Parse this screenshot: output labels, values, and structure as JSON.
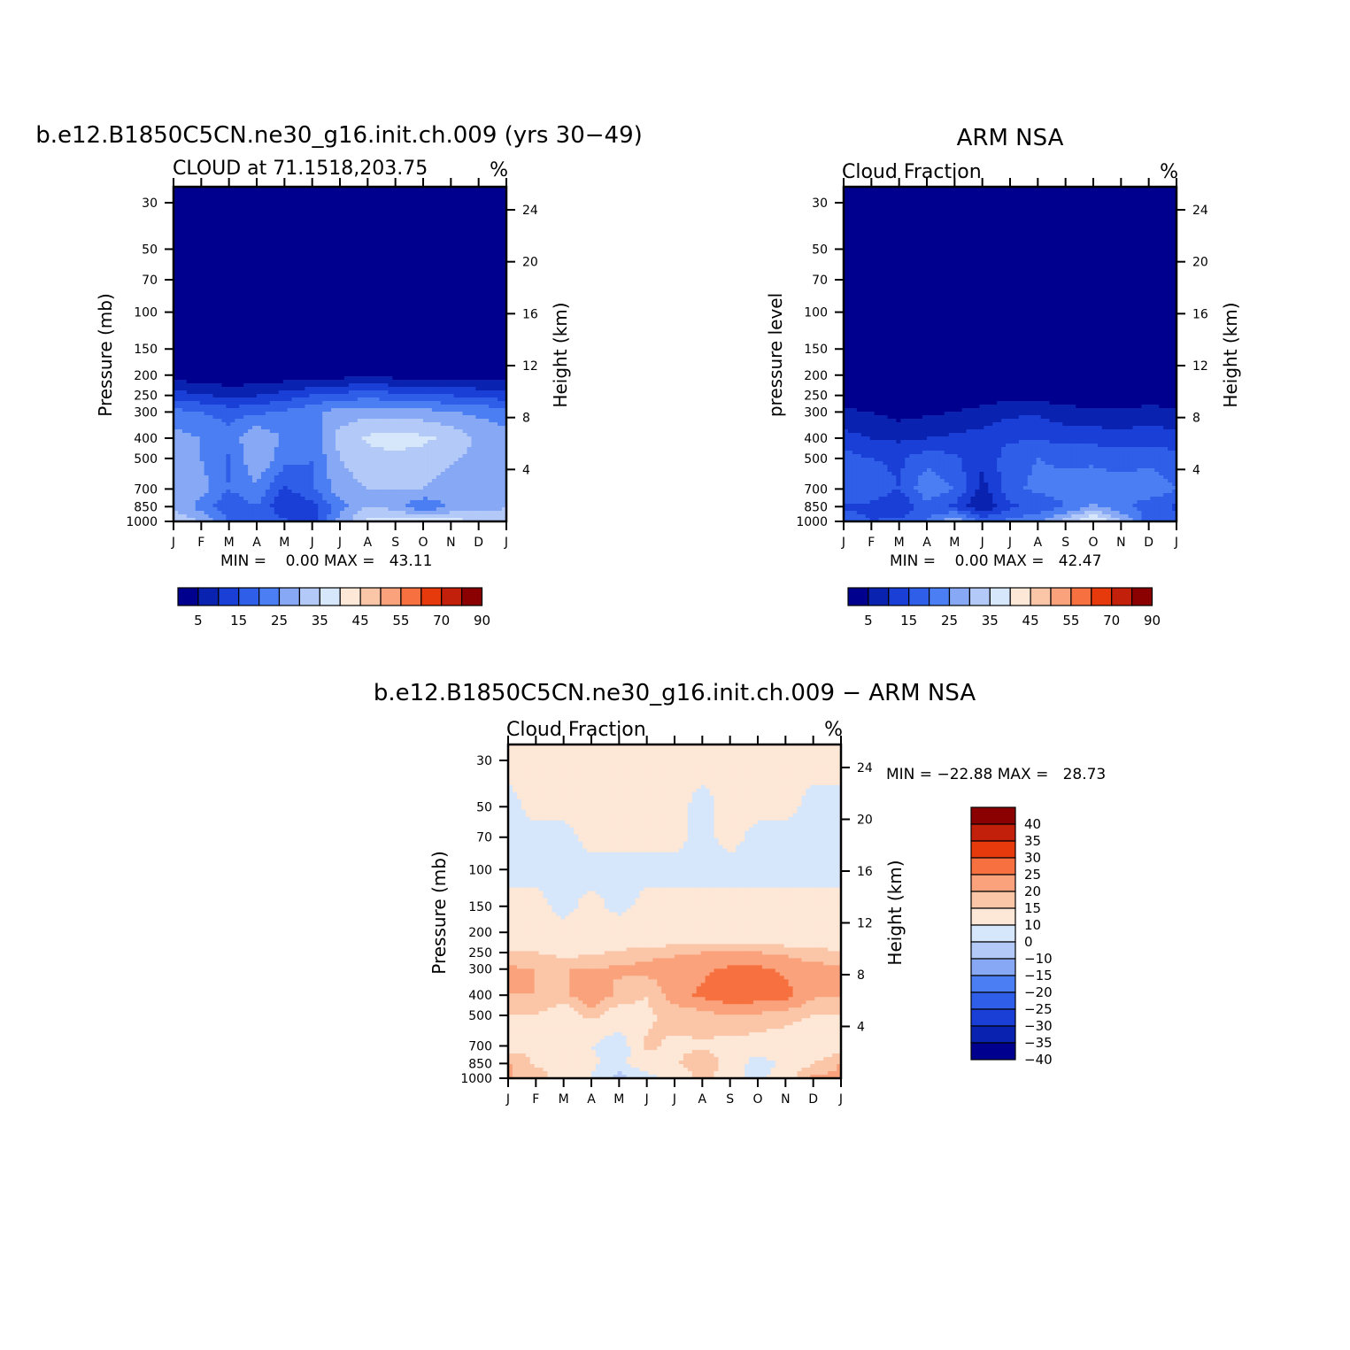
{
  "colors": {
    "cloud_levels": [
      "#00008f",
      "#0a22b0",
      "#1a3fd6",
      "#2f5ee8",
      "#4a7ef2",
      "#87a9f5",
      "#b3c9f8",
      "#d6e6fb",
      "#fde7d6",
      "#fbc6a8",
      "#f9a27c",
      "#f77140",
      "#e63a0c",
      "#c2200a",
      "#8b0000"
    ],
    "diff_levels": [
      "#00008f",
      "#0a22b0",
      "#1a3fd6",
      "#2f5ee8",
      "#4a7ef2",
      "#87a9f5",
      "#b3c9f8",
      "#d6e6fb",
      "#fde7d6",
      "#fbc6a8",
      "#f9a27c",
      "#f77140",
      "#e63a0c",
      "#c2200a",
      "#8b0000"
    ]
  },
  "chart_data": [
    {
      "type": "heatmap",
      "title": "b.e12.B1850C5CN.ne30_g16.init.ch.009 (yrs 30−49)",
      "subtitle": "CLOUD at 71.1518,203.75",
      "units": "%",
      "ylabel": "Pressure (mb)",
      "ylabel_right": "Height (km)",
      "x_ticks": [
        "J",
        "F",
        "M",
        "A",
        "M",
        "J",
        "J",
        "A",
        "S",
        "O",
        "N",
        "D",
        "J"
      ],
      "y_ticks": [
        "30",
        "50",
        "70",
        "100",
        "150",
        "200",
        "250",
        "300",
        "400",
        "500",
        "700",
        "850",
        "1000"
      ],
      "y_ticks_right": [
        "24",
        "20",
        "16",
        "12",
        "8",
        "4"
      ],
      "ylim": [
        30,
        1000
      ],
      "stats": "MIN =    0.00 MAX =   43.11",
      "min": 0.0,
      "max": 43.11,
      "colorbar_labels": [
        "5",
        "15",
        "25",
        "35",
        "45",
        "55",
        "70",
        "90"
      ],
      "months": [
        "J",
        "F",
        "M",
        "A",
        "M",
        "J",
        "J",
        "A",
        "S",
        "O",
        "N",
        "D",
        "J"
      ],
      "levels_mb": [
        30,
        50,
        70,
        100,
        150,
        200,
        250,
        300,
        400,
        500,
        700,
        850,
        1000
      ],
      "values": [
        [
          0,
          0,
          0,
          0,
          0,
          0,
          0,
          0,
          0,
          0,
          0,
          0,
          0
        ],
        [
          0,
          0,
          0,
          0,
          0,
          0,
          0,
          0,
          0,
          0,
          0,
          0,
          0
        ],
        [
          0,
          0,
          0,
          0,
          0,
          0,
          0,
          0,
          0,
          0,
          0,
          0,
          0
        ],
        [
          0,
          0,
          0,
          0,
          0,
          0,
          0,
          0,
          0,
          0,
          0,
          0,
          0
        ],
        [
          0,
          0,
          0,
          0,
          0,
          0,
          0,
          0,
          0,
          0,
          0,
          0,
          0
        ],
        [
          2,
          2,
          1,
          1,
          2,
          2,
          3,
          3,
          3,
          3,
          2,
          2,
          2
        ],
        [
          12,
          11,
          8,
          10,
          12,
          15,
          17,
          18,
          17,
          16,
          15,
          14,
          12
        ],
        [
          22,
          20,
          18,
          19,
          21,
          24,
          27,
          28,
          28,
          27,
          25,
          24,
          22
        ],
        [
          27,
          25,
          22,
          30,
          24,
          22,
          32,
          36,
          37,
          36,
          34,
          29,
          27
        ],
        [
          27,
          25,
          19,
          30,
          22,
          20,
          30,
          33,
          34,
          33,
          31,
          28,
          27
        ],
        [
          27,
          27,
          20,
          24,
          14,
          19,
          28,
          30,
          30,
          30,
          27,
          27,
          27
        ],
        [
          30,
          23,
          16,
          20,
          10,
          13,
          23,
          30,
          28,
          20,
          26,
          27,
          30
        ],
        [
          33,
          30,
          20,
          20,
          16,
          12,
          27,
          36,
          38,
          38,
          37,
          35,
          33
        ]
      ]
    },
    {
      "type": "heatmap",
      "title": "ARM NSA",
      "subtitle": "Cloud Fraction",
      "units": "%",
      "ylabel": "pressure level",
      "ylabel_right": "Height (km)",
      "x_ticks": [
        "J",
        "F",
        "M",
        "A",
        "M",
        "J",
        "J",
        "A",
        "S",
        "O",
        "N",
        "D",
        "J"
      ],
      "y_ticks": [
        "30",
        "50",
        "70",
        "100",
        "150",
        "200",
        "250",
        "300",
        "400",
        "500",
        "700",
        "850",
        "1000"
      ],
      "y_ticks_right": [
        "24",
        "20",
        "16",
        "12",
        "8",
        "4"
      ],
      "ylim": [
        30,
        1000
      ],
      "stats": "MIN =    0.00 MAX =   42.47",
      "min": 0.0,
      "max": 42.47,
      "colorbar_labels": [
        "5",
        "15",
        "25",
        "35",
        "45",
        "55",
        "70",
        "90"
      ],
      "months": [
        "J",
        "F",
        "M",
        "A",
        "M",
        "J",
        "J",
        "A",
        "S",
        "O",
        "N",
        "D",
        "J"
      ],
      "levels_mb": [
        30,
        50,
        70,
        100,
        150,
        200,
        250,
        300,
        400,
        500,
        700,
        850,
        1000
      ],
      "values": [
        [
          0,
          0,
          0,
          0,
          0,
          0,
          0,
          0,
          0,
          0,
          0,
          0,
          0
        ],
        [
          0,
          0,
          0,
          0,
          0,
          0,
          0,
          0,
          0,
          0,
          0,
          0,
          0
        ],
        [
          0,
          0,
          0,
          0,
          0,
          0,
          0,
          0,
          0,
          0,
          0,
          0,
          0
        ],
        [
          0,
          0,
          0,
          0,
          0,
          0,
          0,
          0,
          0,
          0,
          0,
          0,
          0
        ],
        [
          0,
          0,
          0,
          0,
          0,
          0,
          0,
          0,
          0,
          0,
          0,
          0,
          0
        ],
        [
          0,
          0,
          0,
          0,
          0,
          0,
          0,
          0,
          0,
          0,
          0,
          0,
          0
        ],
        [
          1,
          1,
          0,
          1,
          1,
          2,
          3,
          3,
          2,
          1,
          1,
          2,
          1
        ],
        [
          6,
          5,
          3,
          4,
          5,
          7,
          9,
          9,
          7,
          6,
          6,
          7,
          6
        ],
        [
          12,
          10,
          9,
          10,
          11,
          12,
          14,
          15,
          13,
          13,
          12,
          13,
          12
        ],
        [
          17,
          15,
          14,
          18,
          16,
          11,
          18,
          20,
          19,
          19,
          18,
          18,
          17
        ],
        [
          20,
          18,
          15,
          24,
          20,
          8,
          19,
          21,
          22,
          23,
          22,
          24,
          20
        ],
        [
          14,
          14,
          10,
          18,
          14,
          5,
          14,
          16,
          20,
          26,
          22,
          17,
          14
        ],
        [
          18,
          15,
          16,
          20,
          30,
          18,
          22,
          24,
          32,
          42,
          30,
          18,
          18
        ]
      ]
    },
    {
      "type": "heatmap",
      "title": "b.e12.B1850C5CN.ne30_g16.init.ch.009 − ARM NSA",
      "subtitle": "Cloud Fraction",
      "units": "%",
      "ylabel": "Pressure (mb)",
      "ylabel_right": "Height (km)",
      "x_ticks": [
        "J",
        "F",
        "M",
        "A",
        "M",
        "J",
        "J",
        "A",
        "S",
        "O",
        "N",
        "D",
        "J"
      ],
      "y_ticks": [
        "30",
        "50",
        "70",
        "100",
        "150",
        "200",
        "250",
        "300",
        "400",
        "500",
        "700",
        "850",
        "1000"
      ],
      "y_ticks_right": [
        "24",
        "20",
        "16",
        "12",
        "8",
        "4"
      ],
      "ylim": [
        30,
        1000
      ],
      "stats": "MIN = −22.88 MAX =   28.73",
      "min": -22.88,
      "max": 28.73,
      "colorbar_labels": [
        "40",
        "35",
        "30",
        "25",
        "20",
        "15",
        "10",
        "0",
        "−10",
        "−15",
        "−20",
        "−25",
        "−30",
        "−35",
        "−40"
      ],
      "months": [
        "J",
        "F",
        "M",
        "A",
        "M",
        "J",
        "J",
        "A",
        "S",
        "O",
        "N",
        "D",
        "J"
      ],
      "levels_mb": [
        30,
        50,
        70,
        100,
        150,
        200,
        250,
        300,
        400,
        500,
        700,
        850,
        1000
      ],
      "values": [
        [
          1,
          1,
          1,
          1,
          1,
          1,
          1,
          1,
          1,
          1,
          1,
          1,
          1
        ],
        [
          -1,
          1,
          1,
          1,
          1,
          1,
          1,
          -1,
          1,
          1,
          1,
          -1,
          -1
        ],
        [
          -1,
          -1,
          -1,
          1,
          1,
          1,
          1,
          -1,
          1,
          -1,
          -1,
          -1,
          -1
        ],
        [
          -1,
          -1,
          -1,
          -1,
          -1,
          -1,
          -1,
          -1,
          -1,
          -1,
          -1,
          -1,
          -1
        ],
        [
          1,
          1,
          -1,
          1,
          -1,
          1,
          1,
          1,
          1,
          1,
          1,
          1,
          1
        ],
        [
          2,
          2,
          1,
          1,
          2,
          2,
          3,
          3,
          3,
          3,
          2,
          2,
          2
        ],
        [
          11,
          10,
          8,
          9,
          11,
          13,
          14,
          15,
          15,
          15,
          14,
          12,
          11
        ],
        [
          16,
          15,
          15,
          15,
          16,
          17,
          18,
          19,
          21,
          21,
          19,
          17,
          16
        ],
        [
          15,
          15,
          13,
          20,
          13,
          10,
          18,
          21,
          24,
          23,
          22,
          16,
          15
        ],
        [
          10,
          10,
          5,
          12,
          6,
          9,
          12,
          13,
          15,
          14,
          13,
          10,
          10
        ],
        [
          7,
          9,
          5,
          0,
          -6,
          11,
          9,
          9,
          8,
          7,
          5,
          3,
          7
        ],
        [
          16,
          9,
          6,
          2,
          -4,
          8,
          9,
          14,
          8,
          -6,
          4,
          10,
          16
        ],
        [
          15,
          15,
          4,
          0,
          -14,
          -6,
          5,
          12,
          6,
          -4,
          7,
          17,
          15
        ]
      ]
    }
  ]
}
